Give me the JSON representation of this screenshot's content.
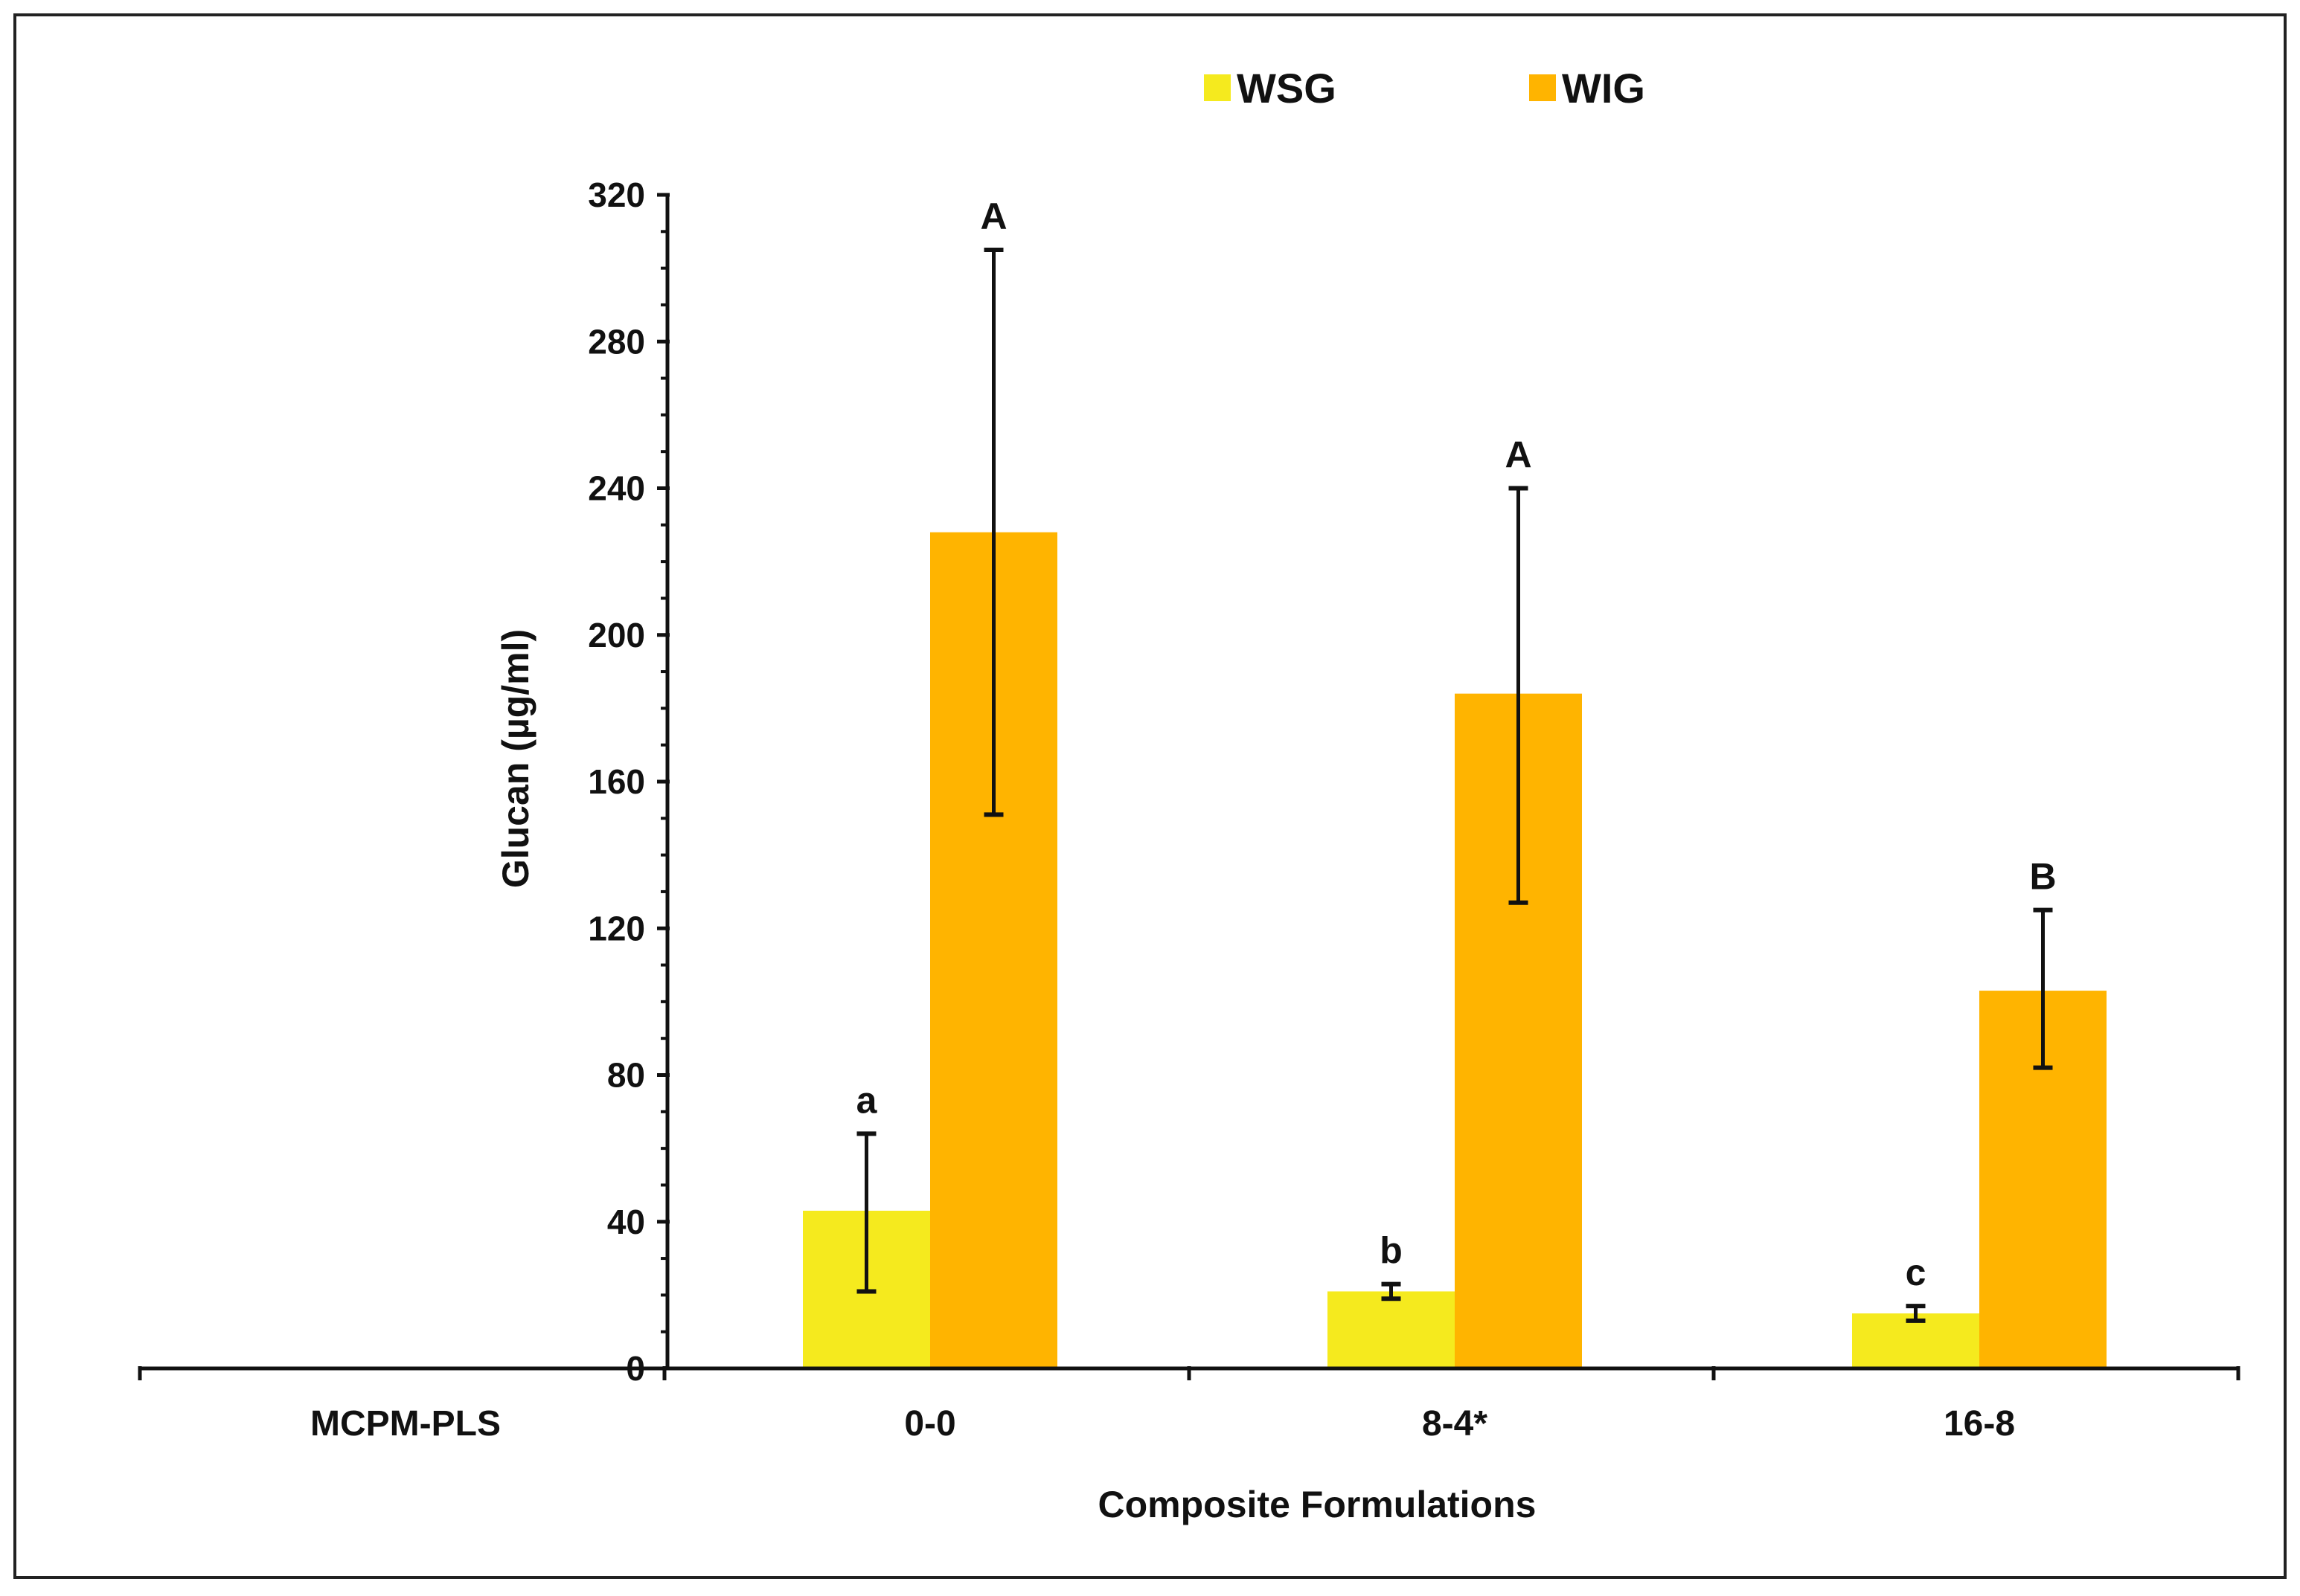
{
  "chart_data": {
    "type": "bar",
    "title": "",
    "xlabel": "Composite Formulations",
    "ylabel": "Glucan (µg/ml)",
    "ylim": [
      0,
      320
    ],
    "yticks": [
      0,
      40,
      80,
      120,
      160,
      200,
      240,
      280,
      320
    ],
    "grid": false,
    "legend_position": "top",
    "categories": [
      "MCPM-PLS",
      "0-0",
      "8-4*",
      "16-8"
    ],
    "series": [
      {
        "name": "WSG",
        "color": "#f5ea1e",
        "values": [
          0,
          43,
          21,
          15
        ],
        "error_low": [
          0,
          21,
          19,
          13
        ],
        "error_high": [
          0,
          64,
          23,
          17
        ],
        "sig_labels": [
          "",
          "a",
          "b",
          "c"
        ]
      },
      {
        "name": "WIG",
        "color": "#ffb400",
        "values": [
          0,
          228,
          184,
          103
        ],
        "error_low": [
          0,
          151,
          127,
          82
        ],
        "error_high": [
          0,
          305,
          240,
          125
        ],
        "sig_labels": [
          "",
          "A",
          "A",
          "B"
        ]
      }
    ]
  }
}
